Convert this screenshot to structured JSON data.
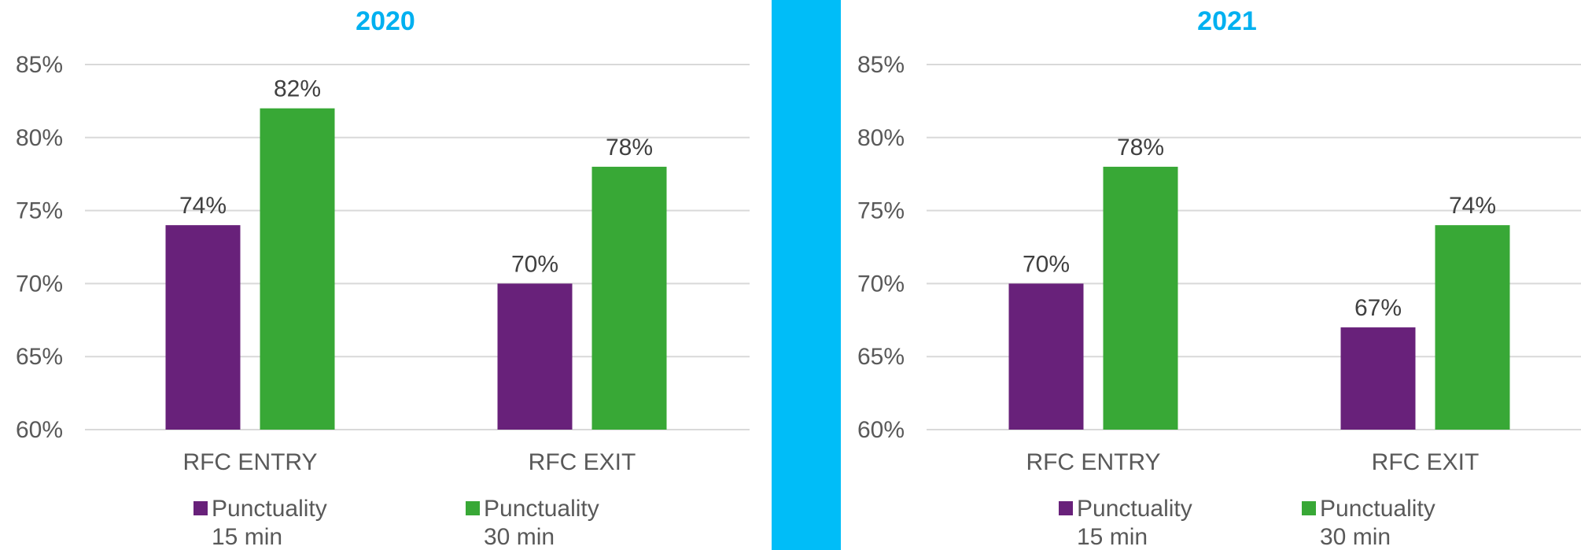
{
  "chart_data": [
    {
      "type": "bar",
      "title": "2020",
      "categories": [
        "RFC ENTRY",
        "RFC EXIT"
      ],
      "series": [
        {
          "name": "Punctuality 15 min",
          "values": [
            74,
            70
          ],
          "color": "#68217a"
        },
        {
          "name": "Punctuality 30 min",
          "values": [
            82,
            78
          ],
          "color": "#38a836"
        }
      ],
      "data_labels": [
        [
          "74%",
          "70%"
        ],
        [
          "82%",
          "78%"
        ]
      ],
      "ylim": [
        60,
        85
      ],
      "y_ticks": [
        60,
        65,
        70,
        75,
        80,
        85
      ],
      "y_tick_labels": [
        "60%",
        "65%",
        "70%",
        "75%",
        "80%",
        "85%"
      ],
      "grid": true,
      "legend": {
        "position": "bottom",
        "items": [
          {
            "line1": "Punctuality",
            "line2": "15 min"
          },
          {
            "line1": "Punctuality",
            "line2": "30 min"
          }
        ]
      }
    },
    {
      "type": "bar",
      "title": "2021",
      "categories": [
        "RFC ENTRY",
        "RFC EXIT"
      ],
      "series": [
        {
          "name": "Punctuality 15 min",
          "values": [
            70,
            67
          ],
          "color": "#68217a"
        },
        {
          "name": "Punctuality 30 min",
          "values": [
            78,
            74
          ],
          "color": "#38a836"
        }
      ],
      "data_labels": [
        [
          "70%",
          "67%"
        ],
        [
          "78%",
          "74%"
        ]
      ],
      "ylim": [
        60,
        85
      ],
      "y_ticks": [
        60,
        65,
        70,
        75,
        80,
        85
      ],
      "y_tick_labels": [
        "60%",
        "65%",
        "70%",
        "75%",
        "80%",
        "85%"
      ],
      "grid": true,
      "legend": {
        "position": "bottom",
        "items": [
          {
            "line1": "Punctuality",
            "line2": "15 min"
          },
          {
            "line1": "Punctuality",
            "line2": "30 min"
          }
        ]
      }
    }
  ],
  "divider_color": "#00bdf8",
  "title_color": "#00b0f0"
}
